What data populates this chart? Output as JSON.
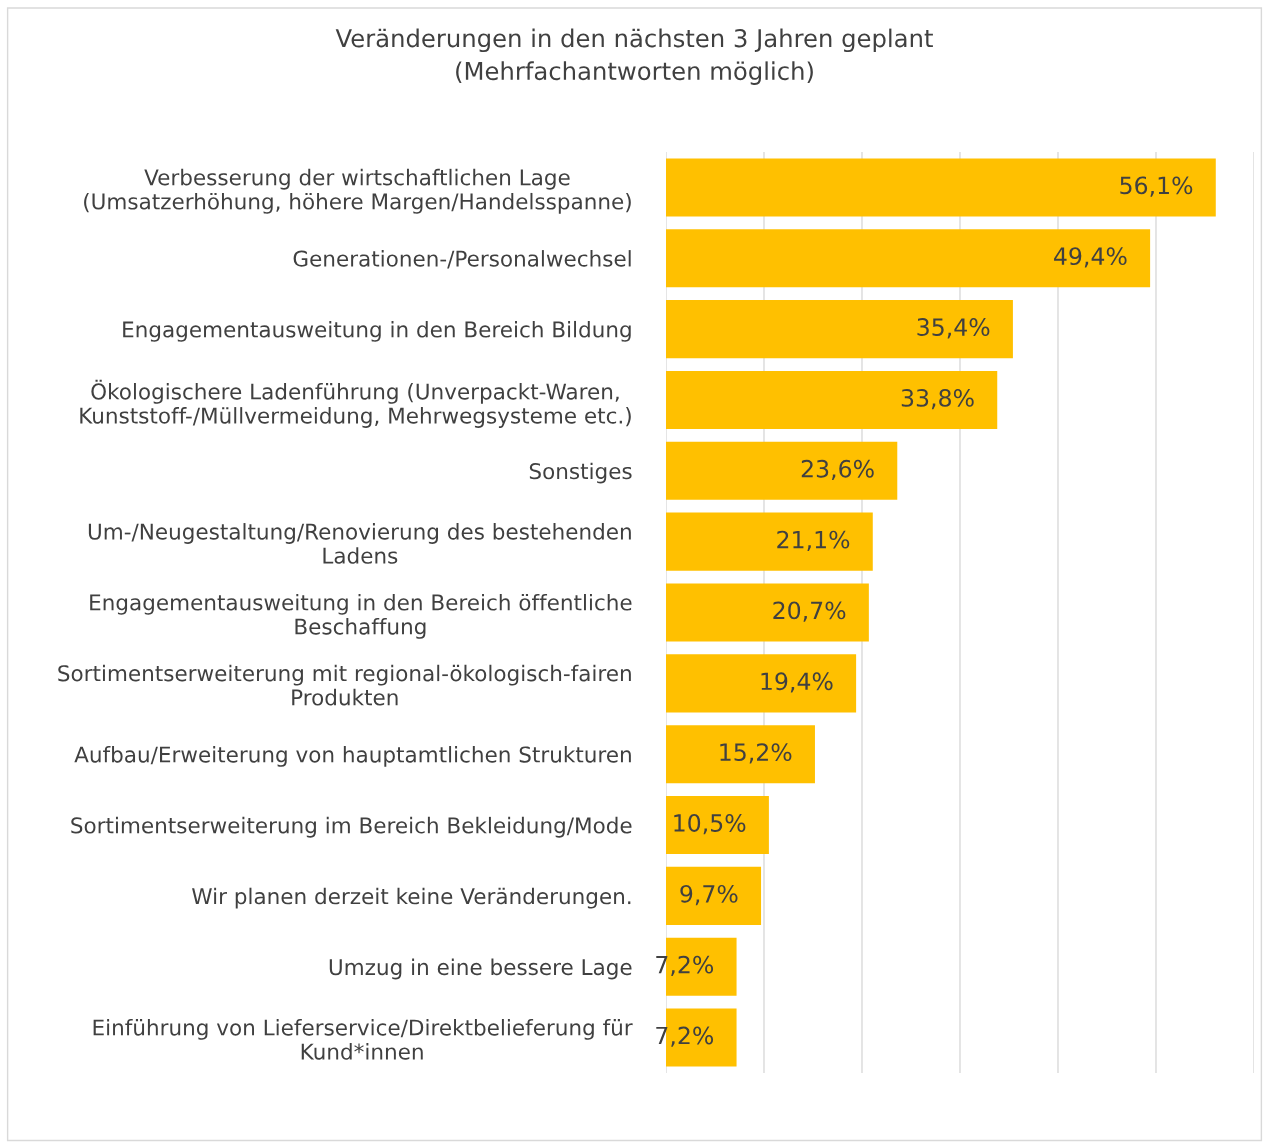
{
  "chart_data": {
    "type": "bar",
    "orientation": "horizontal",
    "title": "Veränderungen in den nächsten 3 Jahren geplant\n(Mehrfachantworten möglich)",
    "categories": [
      "Verbesserung der wirtschaftlichen Lage\n(Umsatzerhöhung, höhere Margen/Handelsspanne)",
      "Generationen-/Personalwechsel",
      "Engagementausweitung in den Bereich Bildung",
      "Ökologischere Ladenführung (Unverpackt-Waren,\nKunststoff-/Müllvermeidung, Mehrwegsysteme etc.)",
      "Sonstiges",
      "Um-/Neugestaltung/Renovierung des bestehenden\nLadens",
      "Engagementausweitung in den Bereich öffentliche\nBeschaffung",
      "Sortimentserweiterung mit regional-ökologisch-fairen\nProdukten",
      "Aufbau/Erweiterung von hauptamtlichen Strukturen",
      "Sortimentserweiterung im Bereich Bekleidung/Mode",
      "Wir planen derzeit keine Veränderungen.",
      "Umzug in eine bessere Lage",
      "Einführung von Lieferservice/Direktbelieferung für\nKund*innen"
    ],
    "values": [
      56.1,
      49.4,
      35.4,
      33.8,
      23.6,
      21.1,
      20.7,
      19.4,
      15.2,
      10.5,
      9.7,
      7.2,
      7.2
    ],
    "value_labels": [
      "56,1%",
      "49,4%",
      "35,4%",
      "33,8%",
      "23,6%",
      "21,1%",
      "20,7%",
      "19,4%",
      "15,2%",
      "10,5%",
      "9,7%",
      "7,2%",
      "7,2%"
    ],
    "color": "#ffc000",
    "xlim": [
      0,
      60
    ],
    "xticks": [
      {
        "value": 0,
        "label": null
      },
      {
        "value": 10,
        "label": null
      },
      {
        "value": 20,
        "label": null
      },
      {
        "value": 30,
        "label": null
      },
      {
        "value": 40,
        "label": null
      },
      {
        "value": 50,
        "label": null
      },
      {
        "value": 60,
        "label": null
      }
    ],
    "grid": "x",
    "tick_labels": "y"
  }
}
